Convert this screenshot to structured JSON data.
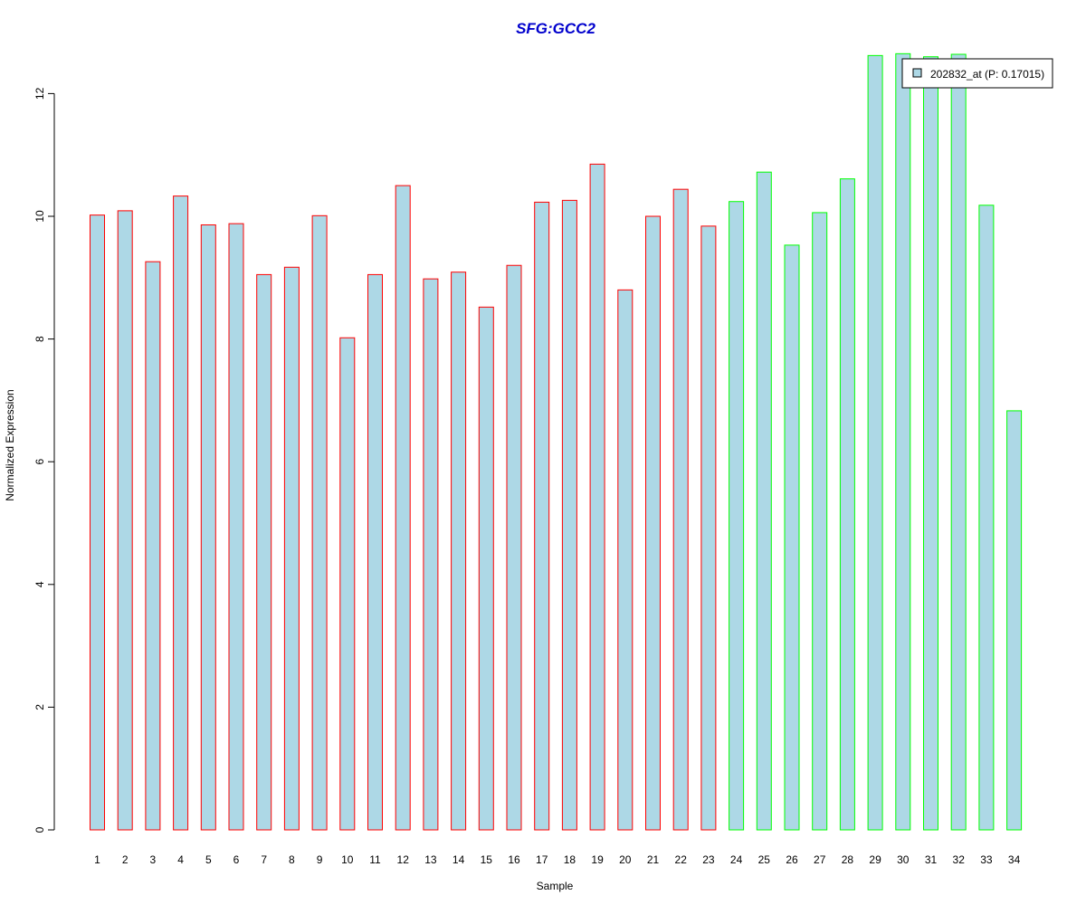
{
  "chart_data": {
    "type": "bar",
    "title": "SFG:GCC2",
    "xlabel": "Sample",
    "ylabel": "Normalized Expression",
    "ylim": [
      0,
      12.7
    ],
    "yticks": [
      0,
      2,
      4,
      6,
      8,
      10,
      12
    ],
    "grid": false,
    "legend_position": "top-right",
    "categories": [
      "1",
      "2",
      "3",
      "4",
      "5",
      "6",
      "7",
      "8",
      "9",
      "10",
      "11",
      "12",
      "13",
      "14",
      "15",
      "16",
      "17",
      "18",
      "19",
      "20",
      "21",
      "22",
      "23",
      "24",
      "25",
      "26",
      "27",
      "28",
      "29",
      "30",
      "31",
      "32",
      "33",
      "34"
    ],
    "series": [
      {
        "name": "202832_at (P: 0.17015)",
        "values": [
          10.02,
          10.09,
          9.26,
          10.33,
          9.86,
          9.88,
          9.05,
          9.17,
          10.01,
          8.02,
          9.05,
          10.5,
          8.98,
          9.09,
          8.52,
          9.2,
          10.23,
          10.26,
          10.85,
          8.8,
          10.0,
          10.44,
          9.84,
          10.24,
          10.72,
          9.53,
          10.06,
          10.61,
          12.62,
          12.65,
          12.6,
          12.64,
          10.18,
          6.83
        ]
      }
    ],
    "groups": [
      1,
      1,
      1,
      1,
      1,
      1,
      1,
      1,
      1,
      1,
      1,
      1,
      1,
      1,
      1,
      1,
      1,
      1,
      1,
      1,
      1,
      1,
      1,
      2,
      2,
      2,
      2,
      2,
      2,
      2,
      2,
      2,
      2,
      2
    ],
    "colors": {
      "bar_fill": "#add8e6",
      "group1_border": "#ff0000",
      "group2_border": "#00ff00",
      "title": "#0000cd",
      "axis": "#000000"
    }
  }
}
